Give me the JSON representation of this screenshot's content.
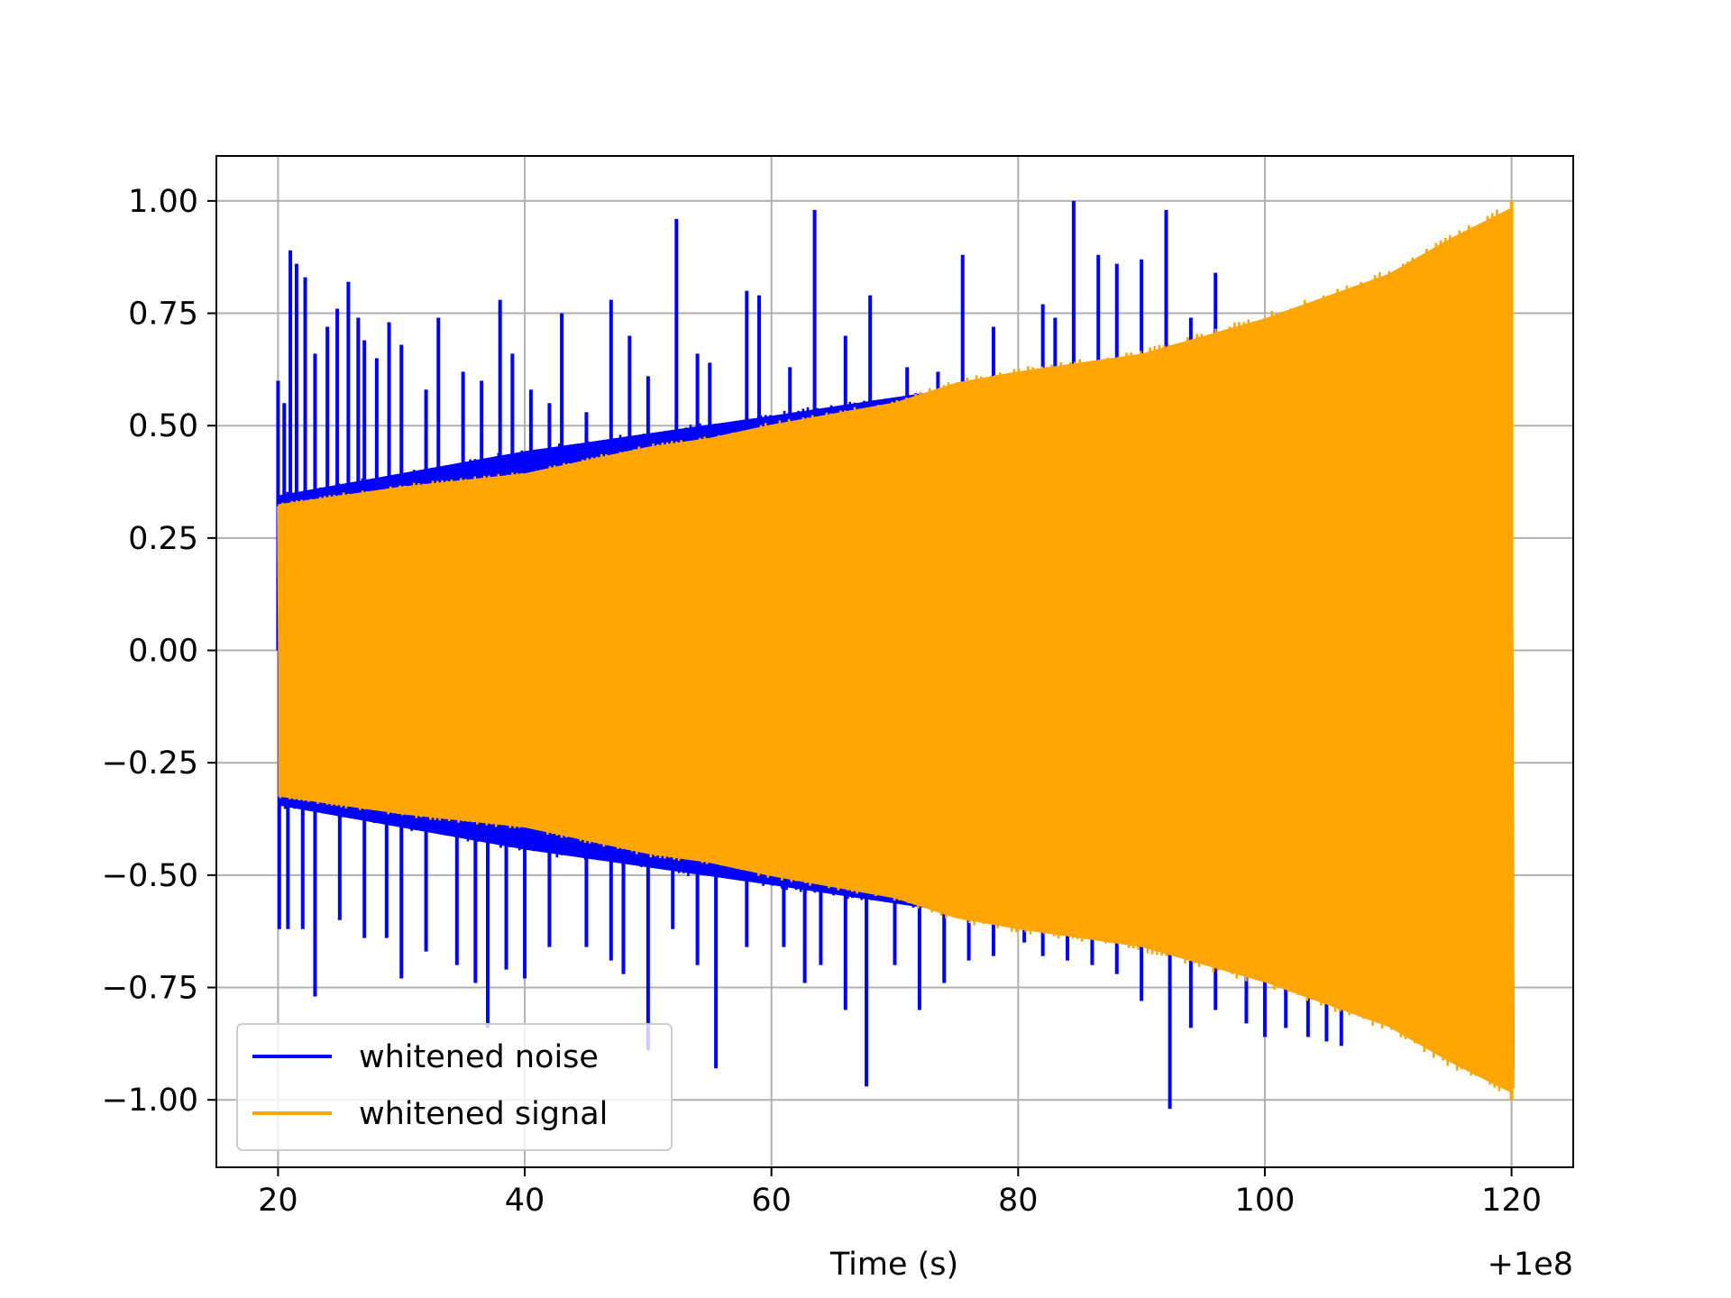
{
  "chart_data": {
    "type": "line",
    "title": "",
    "xlabel": "Time (s)",
    "ylabel": "",
    "x_offset_label": "+1e8",
    "xlim": [
      15,
      125
    ],
    "ylim": [
      -1.15,
      1.1
    ],
    "grid": true,
    "legend_position": "lower-left",
    "x_ticks": [
      20,
      40,
      60,
      80,
      100,
      120
    ],
    "x_tick_labels": [
      "20",
      "40",
      "60",
      "80",
      "100",
      "120"
    ],
    "y_ticks": [
      1.0,
      0.75,
      0.5,
      0.25,
      0.0,
      -0.25,
      -0.5,
      -0.75,
      -1.0
    ],
    "y_tick_labels": [
      "1.00",
      "0.75",
      "0.50",
      "0.25",
      "0.00",
      "−0.25",
      "−0.50",
      "−0.75",
      "−1.00"
    ],
    "series": [
      {
        "name": "whitened noise",
        "color": "#0000ff",
        "x_range": [
          20,
          120
        ],
        "envelope_x": [
          20,
          30,
          40,
          50,
          60,
          72,
          80,
          90,
          100,
          110,
          120
        ],
        "envelope_upper": [
          0.35,
          0.4,
          0.45,
          0.49,
          0.53,
          0.58,
          0.61,
          0.66,
          0.72,
          0.82,
          1.0
        ],
        "envelope_lower": [
          -0.35,
          -0.4,
          -0.45,
          -0.49,
          -0.53,
          -0.58,
          -0.61,
          -0.66,
          -0.72,
          -0.82,
          -1.0
        ],
        "spikes": [
          [
            20.0,
            0.6
          ],
          [
            20.5,
            0.55
          ],
          [
            21.0,
            0.89
          ],
          [
            21.5,
            0.86
          ],
          [
            22.2,
            0.83
          ],
          [
            23.0,
            0.66
          ],
          [
            24.0,
            0.72
          ],
          [
            24.8,
            0.76
          ],
          [
            25.7,
            0.82
          ],
          [
            26.5,
            0.74
          ],
          [
            27.0,
            0.69
          ],
          [
            28.0,
            0.65
          ],
          [
            29.0,
            0.73
          ],
          [
            30.0,
            0.68
          ],
          [
            32.0,
            0.58
          ],
          [
            33.0,
            0.74
          ],
          [
            35.0,
            0.62
          ],
          [
            36.5,
            0.6
          ],
          [
            38.0,
            0.78
          ],
          [
            39.0,
            0.66
          ],
          [
            40.5,
            0.58
          ],
          [
            42.0,
            0.55
          ],
          [
            43.0,
            0.75
          ],
          [
            45.0,
            0.53
          ],
          [
            47.0,
            0.78
          ],
          [
            48.5,
            0.7
          ],
          [
            50.0,
            0.61
          ],
          [
            52.3,
            0.96
          ],
          [
            54.0,
            0.66
          ],
          [
            55.0,
            0.64
          ],
          [
            58.0,
            0.8
          ],
          [
            59.0,
            0.79
          ],
          [
            61.5,
            0.63
          ],
          [
            63.5,
            0.98
          ],
          [
            66.0,
            0.7
          ],
          [
            68.0,
            0.79
          ],
          [
            71.0,
            0.63
          ],
          [
            73.5,
            0.62
          ],
          [
            75.5,
            0.88
          ],
          [
            78.0,
            0.72
          ],
          [
            80.0,
            0.6
          ],
          [
            82.0,
            0.77
          ],
          [
            83.0,
            0.74
          ],
          [
            84.5,
            1.0
          ],
          [
            86.5,
            0.88
          ],
          [
            88.0,
            0.86
          ],
          [
            90.0,
            0.87
          ],
          [
            92.0,
            0.98
          ],
          [
            94.0,
            0.74
          ],
          [
            96.0,
            0.84
          ],
          [
            20.1,
            -0.62
          ],
          [
            20.8,
            -0.62
          ],
          [
            22.0,
            -0.62
          ],
          [
            23.0,
            -0.77
          ],
          [
            25.0,
            -0.6
          ],
          [
            27.0,
            -0.64
          ],
          [
            28.8,
            -0.64
          ],
          [
            30.0,
            -0.73
          ],
          [
            32.0,
            -0.67
          ],
          [
            34.5,
            -0.7
          ],
          [
            36.0,
            -0.74
          ],
          [
            37.0,
            -0.84
          ],
          [
            38.5,
            -0.71
          ],
          [
            40.0,
            -0.73
          ],
          [
            42.0,
            -0.66
          ],
          [
            45.0,
            -0.66
          ],
          [
            47.0,
            -0.69
          ],
          [
            48.0,
            -0.72
          ],
          [
            50.0,
            -0.89
          ],
          [
            52.0,
            -0.62
          ],
          [
            54.0,
            -0.7
          ],
          [
            55.5,
            -0.93
          ],
          [
            58.0,
            -0.66
          ],
          [
            61.0,
            -0.66
          ],
          [
            62.7,
            -0.74
          ],
          [
            64.0,
            -0.7
          ],
          [
            66.0,
            -0.8
          ],
          [
            67.7,
            -0.97
          ],
          [
            70.0,
            -0.7
          ],
          [
            72.0,
            -0.8
          ],
          [
            74.0,
            -0.74
          ],
          [
            76.0,
            -0.69
          ],
          [
            78.0,
            -0.68
          ],
          [
            80.5,
            -0.65
          ],
          [
            82.0,
            -0.68
          ],
          [
            84.0,
            -0.69
          ],
          [
            86.0,
            -0.7
          ],
          [
            88.0,
            -0.72
          ],
          [
            90.0,
            -0.78
          ],
          [
            92.3,
            -1.02
          ],
          [
            94.0,
            -0.84
          ],
          [
            96.0,
            -0.8
          ],
          [
            98.5,
            -0.83
          ],
          [
            100.0,
            -0.86
          ],
          [
            101.7,
            -0.84
          ],
          [
            103.5,
            -0.86
          ],
          [
            105.0,
            -0.87
          ],
          [
            106.2,
            -0.88
          ]
        ]
      },
      {
        "name": "whitened signal",
        "color": "#ffa500",
        "x_range": [
          20,
          120
        ],
        "envelope_x": [
          20,
          25,
          30,
          35,
          40,
          45,
          50,
          55,
          60,
          65,
          70,
          75,
          80,
          85,
          90,
          95,
          100,
          105,
          110,
          115,
          120
        ],
        "envelope_upper": [
          0.33,
          0.35,
          0.37,
          0.385,
          0.4,
          0.43,
          0.46,
          0.48,
          0.51,
          0.535,
          0.56,
          0.605,
          0.63,
          0.65,
          0.67,
          0.71,
          0.75,
          0.8,
          0.85,
          0.93,
          1.0
        ],
        "envelope_lower": [
          -0.33,
          -0.35,
          -0.37,
          -0.385,
          -0.4,
          -0.43,
          -0.46,
          -0.48,
          -0.51,
          -0.535,
          -0.56,
          -0.605,
          -0.63,
          -0.65,
          -0.67,
          -0.71,
          -0.75,
          -0.8,
          -0.85,
          -0.93,
          -1.0
        ]
      }
    ]
  }
}
